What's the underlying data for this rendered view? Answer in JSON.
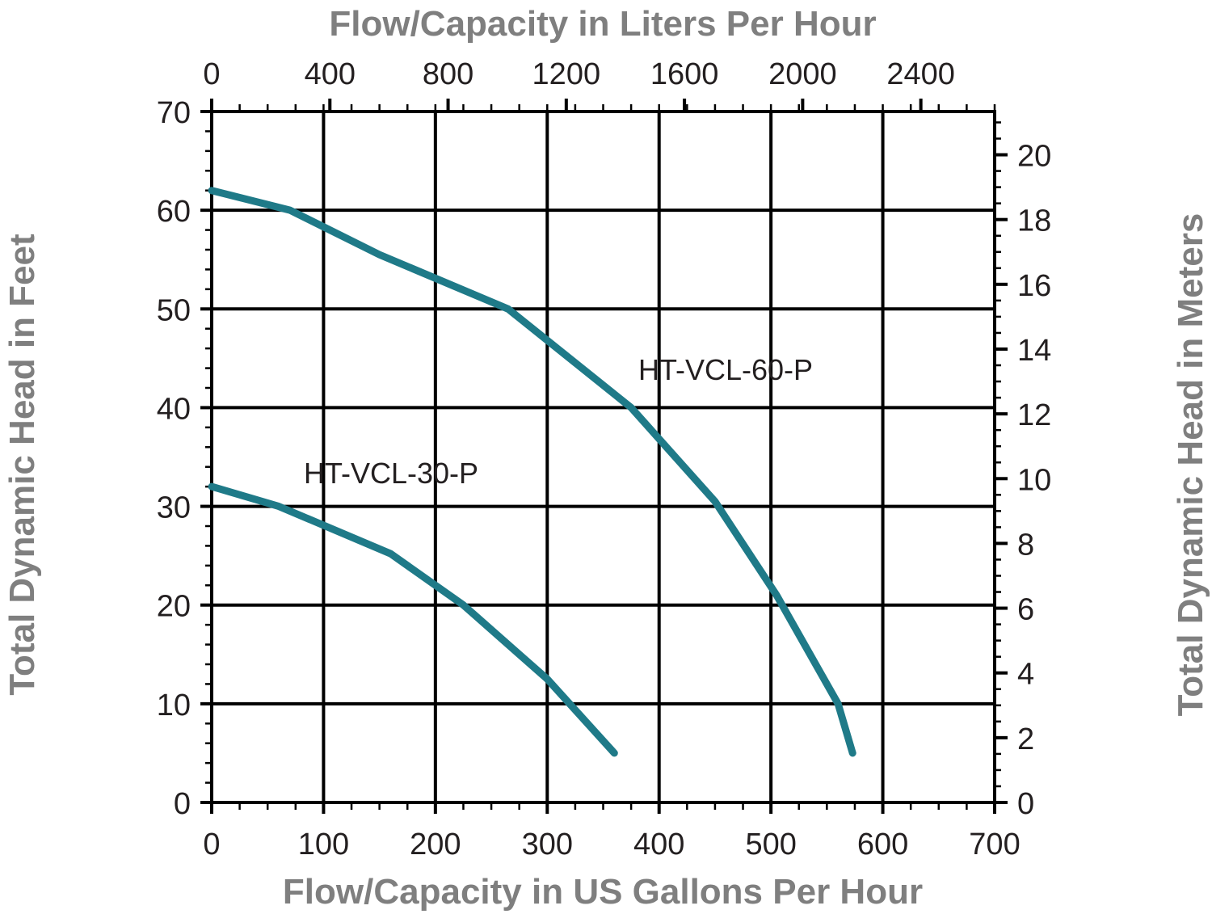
{
  "chart_data": {
    "type": "line",
    "title": "",
    "xlabel": "Flow/Capacity in US Gallons Per Hour",
    "ylabel": "Total Dynamic Head in Feet",
    "x2label": "Flow/Capacity in Liters Per Hour",
    "y2label": "Total Dynamic Head in Meters",
    "xlim": [
      0,
      700
    ],
    "ylim": [
      0,
      70
    ],
    "x2lim": [
      0,
      2649.8
    ],
    "y2lim": [
      0,
      21.336
    ],
    "x_ticks": [
      "0",
      "100",
      "200",
      "300",
      "400",
      "500",
      "600",
      "700"
    ],
    "y_ticks": [
      "0",
      "10",
      "20",
      "30",
      "40",
      "50",
      "60",
      "70"
    ],
    "x2_ticks": [
      "0",
      "400",
      "800",
      "1200",
      "1600",
      "2000",
      "2400"
    ],
    "y2_ticks": [
      "0",
      "2",
      "4",
      "6",
      "8",
      "10",
      "12",
      "14",
      "16",
      "18",
      "20"
    ],
    "grid": true,
    "line_color": "#1f7a88",
    "series": [
      {
        "name": "HT-VCL-60-P",
        "x": [
          0,
          70,
          150,
          265,
          375,
          450,
          505,
          560,
          573
        ],
        "y": [
          62,
          60,
          55.5,
          50,
          40,
          30.5,
          21,
          10,
          5
        ]
      },
      {
        "name": "HT-VCL-30-P",
        "x": [
          0,
          60,
          160,
          225,
          300,
          360
        ],
        "y": [
          32,
          30,
          25.2,
          20,
          12.5,
          5
        ]
      }
    ]
  }
}
